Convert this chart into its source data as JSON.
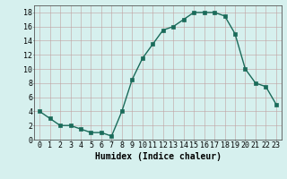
{
  "x": [
    0,
    1,
    2,
    3,
    4,
    5,
    6,
    7,
    8,
    9,
    10,
    11,
    12,
    13,
    14,
    15,
    16,
    17,
    18,
    19,
    20,
    21,
    22,
    23
  ],
  "y": [
    4,
    3,
    2,
    2,
    1.5,
    1,
    1,
    0.5,
    4,
    8.5,
    11.5,
    13.5,
    15.5,
    16,
    17,
    18,
    18,
    18,
    17.5,
    15,
    10,
    8,
    7.5,
    5
  ],
  "line_color": "#1a6b5a",
  "marker_color": "#1a6b5a",
  "bg_color": "#d6f0ee",
  "grid_color": "#c0a0a0",
  "xlabel": "Humidex (Indice chaleur)",
  "xlim": [
    -0.5,
    23.5
  ],
  "ylim": [
    0,
    19
  ],
  "yticks": [
    0,
    2,
    4,
    6,
    8,
    10,
    12,
    14,
    16,
    18
  ],
  "xticks": [
    0,
    1,
    2,
    3,
    4,
    5,
    6,
    7,
    8,
    9,
    10,
    11,
    12,
    13,
    14,
    15,
    16,
    17,
    18,
    19,
    20,
    21,
    22,
    23
  ],
  "xtick_labels": [
    "0",
    "1",
    "2",
    "3",
    "4",
    "5",
    "6",
    "7",
    "8",
    "9",
    "10",
    "11",
    "12",
    "13",
    "14",
    "15",
    "16",
    "17",
    "18",
    "19",
    "20",
    "21",
    "22",
    "23"
  ],
  "marker_size": 2.5,
  "line_width": 1.0,
  "tick_font_size": 6.0,
  "xlabel_font_size": 7.0
}
